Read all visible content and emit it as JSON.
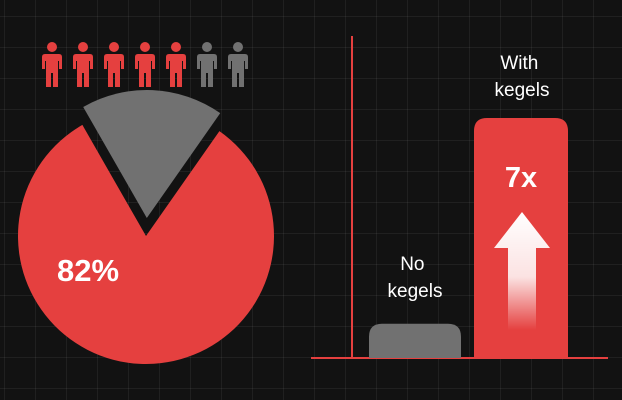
{
  "colors": {
    "background": "#121212",
    "accent": "#e5403f",
    "muted": "#717171",
    "text": "#ffffff"
  },
  "icons": {
    "person": "person-icon",
    "up_arrow": "up-arrow-icon"
  },
  "chart_data": [
    {
      "type": "pictograph",
      "total": 7,
      "highlighted": 5,
      "highlight_color": "#e5403f",
      "rest_color": "#717171"
    },
    {
      "type": "pie",
      "slices": [
        {
          "label": "82%",
          "value": 82,
          "color": "#e5403f",
          "exploded": false
        },
        {
          "label": "",
          "value": 18,
          "color": "#717171",
          "exploded": true
        }
      ]
    },
    {
      "type": "bar",
      "categories": [
        "No kegels",
        "With kegels"
      ],
      "category_lines": [
        [
          "No",
          "kegels"
        ],
        [
          "With",
          "kegels"
        ]
      ],
      "values": [
        1,
        7
      ],
      "colors": [
        "#717171",
        "#e5403f"
      ],
      "annotation": "7x",
      "annotation_icon": "up-arrow-icon",
      "ylim": [
        0,
        7
      ]
    }
  ]
}
